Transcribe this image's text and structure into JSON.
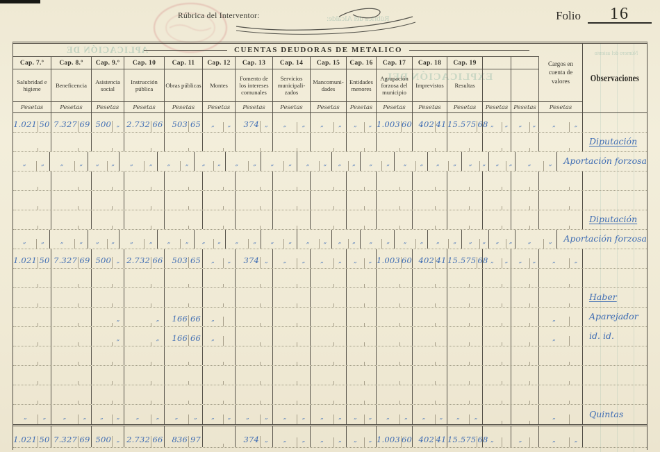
{
  "page": {
    "rubrica_label": "Rúbrica del Interventor:",
    "folio_label": "Folio",
    "folio_number": "16",
    "title": "CUENTAS DEUDORAS DE METALICO",
    "pesetas_label": "Pesetas",
    "cargos_label": "Cargos en cuenta de valores",
    "observaciones_label": "Observaciones",
    "ink_color": "#3e6cb3",
    "paper_color": "#f0ead5"
  },
  "bleed_through": {
    "alcalde": "Rúbrica del Alcalde:",
    "aplicacion": "APLICACIÓN DE",
    "explicacion": "EXPLICACIÓN DEL",
    "numero_asiento": "Número del asiento"
  },
  "columns": [
    {
      "cap": "Cap. 7.º",
      "name": "Salubridad e higiene"
    },
    {
      "cap": "Cap. 8.º",
      "name": "Beneficencia"
    },
    {
      "cap": "Cap. 9.º",
      "name": "Asistencia social"
    },
    {
      "cap": "Cap. 10",
      "name": "Instrucción pública"
    },
    {
      "cap": "Cap. 11",
      "name": "Obras públicas"
    },
    {
      "cap": "Cap. 12",
      "name": "Montes"
    },
    {
      "cap": "Cap. 13",
      "name": "Fomento de los intereses comunales"
    },
    {
      "cap": "Cap. 14",
      "name": "Servicios municipali-zados"
    },
    {
      "cap": "Cap. 15",
      "name": "Mancomuni-dades"
    },
    {
      "cap": "Cap. 16",
      "name": "Entidades menores"
    },
    {
      "cap": "Cap. 17",
      "name": "Agrupación forzosa del municipio"
    },
    {
      "cap": "Cap. 18",
      "name": "Imprevistos"
    },
    {
      "cap": "Cap. 19",
      "name": "Resultas"
    },
    {
      "cap": "",
      "name": ""
    },
    {
      "cap": "",
      "name": ""
    }
  ],
  "body_rows": [
    {
      "kind": "data",
      "cells": [
        [
          "1.021",
          "50"
        ],
        [
          "7.327",
          "69"
        ],
        [
          "500",
          "„"
        ],
        [
          "2.732",
          "66"
        ],
        [
          "503",
          "65"
        ],
        [
          "„",
          "„"
        ],
        [
          "374",
          "„"
        ],
        [
          "„",
          "„"
        ],
        [
          "„",
          "„"
        ],
        [
          "„",
          "„"
        ],
        [
          "1.003",
          "60"
        ],
        [
          "402",
          "41"
        ],
        [
          "15.575",
          "68"
        ],
        [
          "„",
          "„"
        ],
        [
          "„",
          "„"
        ],
        [
          "„",
          "„"
        ]
      ],
      "obs": ""
    },
    {
      "kind": "note",
      "obs": "Diputación",
      "obs_underline": true
    },
    {
      "kind": "ditto",
      "cells": [
        [
          "„",
          "„"
        ],
        [
          "„",
          "„"
        ],
        [
          "„",
          "„"
        ],
        [
          "„",
          "„"
        ],
        [
          "„",
          "„"
        ],
        [
          "„",
          "„"
        ],
        [
          "„",
          "„"
        ],
        [
          "„",
          "„"
        ],
        [
          "„",
          "„"
        ],
        [
          "„",
          "„"
        ],
        [
          "„",
          "„"
        ],
        [
          "„",
          "„"
        ],
        [
          "„",
          "„"
        ],
        [
          "„",
          "„"
        ],
        [
          "„",
          "„"
        ],
        [
          "„",
          "„"
        ]
      ],
      "obs": "Aportación forzosa"
    },
    {
      "kind": "empty"
    },
    {
      "kind": "empty"
    },
    {
      "kind": "note",
      "obs": "Diputación",
      "obs_underline": true
    },
    {
      "kind": "ditto",
      "cells": [
        [
          "„",
          "„"
        ],
        [
          "„",
          "„"
        ],
        [
          "„",
          "„"
        ],
        [
          "„",
          "„"
        ],
        [
          "„",
          "„"
        ],
        [
          "„",
          "„"
        ],
        [
          "„",
          "„"
        ],
        [
          "„",
          "„"
        ],
        [
          "„",
          "„"
        ],
        [
          "„",
          "„"
        ],
        [
          "„",
          "„"
        ],
        [
          "„",
          "„"
        ],
        [
          "„",
          "„"
        ],
        [
          "„",
          "„"
        ],
        [
          "„",
          "„"
        ],
        [
          "„",
          "„"
        ]
      ],
      "obs": "Aportación forzosa"
    },
    {
      "kind": "data",
      "cells": [
        [
          "1.021",
          "50"
        ],
        [
          "7.327",
          "69"
        ],
        [
          "500",
          "„"
        ],
        [
          "2.732",
          "66"
        ],
        [
          "503",
          "65"
        ],
        [
          "„",
          "„"
        ],
        [
          "374",
          "„"
        ],
        [
          "„",
          "„"
        ],
        [
          "„",
          "„"
        ],
        [
          "„",
          "„"
        ],
        [
          "1.003",
          "60"
        ],
        [
          "402",
          "41"
        ],
        [
          "15.575",
          "68"
        ],
        [
          "„",
          "„"
        ],
        [
          "„",
          "„"
        ],
        [
          "„",
          "„"
        ]
      ],
      "obs": ""
    },
    {
      "kind": "empty"
    },
    {
      "kind": "note",
      "obs": "Haber",
      "obs_underline": true
    },
    {
      "kind": "data",
      "cells": [
        [
          "",
          ""
        ],
        [
          "",
          ""
        ],
        [
          "",
          "„"
        ],
        [
          "",
          "„"
        ],
        [
          "166",
          "66"
        ],
        [
          "„",
          ""
        ],
        [
          "",
          ""
        ],
        [
          "",
          ""
        ],
        [
          "",
          ""
        ],
        [
          "",
          ""
        ],
        [
          "",
          ""
        ],
        [
          "",
          ""
        ],
        [
          "",
          ""
        ],
        [
          "",
          ""
        ],
        [
          "",
          ""
        ],
        [
          "„",
          ""
        ]
      ],
      "obs": "Aparejador"
    },
    {
      "kind": "data",
      "cells": [
        [
          "",
          ""
        ],
        [
          "",
          ""
        ],
        [
          "",
          "„"
        ],
        [
          "",
          "„"
        ],
        [
          "166",
          "66"
        ],
        [
          "„",
          ""
        ],
        [
          "",
          ""
        ],
        [
          "",
          ""
        ],
        [
          "",
          ""
        ],
        [
          "",
          ""
        ],
        [
          "",
          ""
        ],
        [
          "",
          ""
        ],
        [
          "",
          ""
        ],
        [
          "",
          ""
        ],
        [
          "",
          ""
        ],
        [
          "„",
          ""
        ]
      ],
      "obs": "id. id."
    },
    {
      "kind": "empty"
    },
    {
      "kind": "empty"
    },
    {
      "kind": "empty"
    },
    {
      "kind": "ditto",
      "cells": [
        [
          "„",
          "„"
        ],
        [
          "„",
          "„"
        ],
        [
          "„",
          "„"
        ],
        [
          "„",
          "„"
        ],
        [
          "„",
          "„"
        ],
        [
          "„",
          "„"
        ],
        [
          "„",
          "„"
        ],
        [
          "„",
          "„"
        ],
        [
          "„",
          "„"
        ],
        [
          "„",
          "„"
        ],
        [
          "„",
          "„"
        ],
        [
          "„",
          "„"
        ],
        [
          "„",
          "„"
        ],
        [
          "",
          ""
        ],
        [
          "",
          ""
        ],
        [
          "„",
          ""
        ]
      ],
      "obs": "Quintas"
    },
    {
      "kind": "total",
      "cells": [
        [
          "1.021",
          "50"
        ],
        [
          "7.327",
          "69"
        ],
        [
          "500",
          "„"
        ],
        [
          "2.732",
          "66"
        ],
        [
          "836",
          "97"
        ],
        [
          "",
          ""
        ],
        [
          "374",
          "„"
        ],
        [
          "„",
          "„"
        ],
        [
          "„",
          "„"
        ],
        [
          "„",
          "„"
        ],
        [
          "1.003",
          "60"
        ],
        [
          "402",
          "41"
        ],
        [
          "15.575",
          "68"
        ],
        [
          "„",
          ""
        ],
        [
          "„",
          ""
        ],
        [
          "„",
          "„"
        ]
      ],
      "obs": ""
    }
  ]
}
